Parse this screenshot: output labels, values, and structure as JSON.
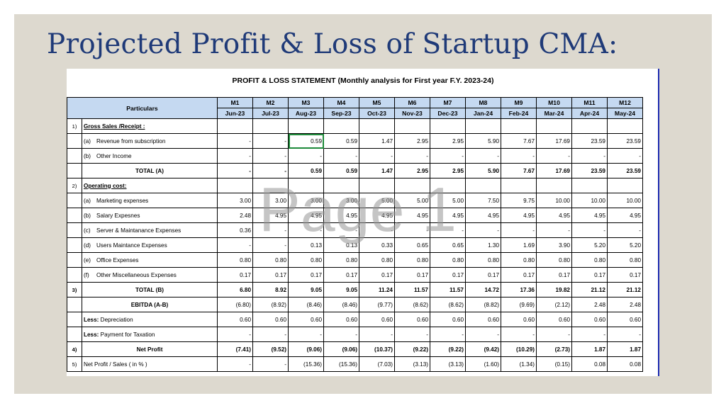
{
  "slide": {
    "title": "Projected Profit & Loss of Startup CMA:"
  },
  "sheet": {
    "title": "PROFIT & LOSS STATEMENT (Monthly analysis for First year F.Y. 2023-24)",
    "particulars_header": "Particulars",
    "months": [
      "M1",
      "M2",
      "M3",
      "M4",
      "M5",
      "M6",
      "M7",
      "M8",
      "M9",
      "M10",
      "M11",
      "M12"
    ],
    "dates": [
      "Jun-23",
      "Jul-23",
      "Aug-23",
      "Sep-23",
      "Oct-23",
      "Nov-23",
      "Dec-23",
      "Jan-24",
      "Feb-24",
      "Mar-24",
      "Apr-24",
      "May-24"
    ]
  },
  "watermark": "Page 1",
  "rows": [
    {
      "type": "section",
      "no": "1)",
      "label": "Gross Sales /Receipt :"
    },
    {
      "type": "item",
      "letter": "(a)",
      "label": "Revenue from subscription",
      "values": [
        "-",
        "-",
        "0.59",
        "0.59",
        "1.47",
        "2.95",
        "2.95",
        "5.90",
        "7.67",
        "17.69",
        "23.59",
        "23.59"
      ]
    },
    {
      "type": "item",
      "letter": "(b)",
      "label": "Other Income",
      "values": [
        "-",
        "-",
        "-",
        "-",
        "-",
        "-",
        "-",
        "-",
        "-",
        "-",
        "-",
        "-"
      ]
    },
    {
      "type": "total",
      "label": "TOTAL (A)",
      "values": [
        "-",
        "-",
        "0.59",
        "0.59",
        "1.47",
        "2.95",
        "2.95",
        "5.90",
        "7.67",
        "17.69",
        "23.59",
        "23.59"
      ]
    },
    {
      "type": "section",
      "no": "2)",
      "label": "Operating cost:"
    },
    {
      "type": "item",
      "letter": "(a)",
      "label": "Marketing expenses",
      "values": [
        "3.00",
        "3.00",
        "3.00",
        "3.00",
        "5.00",
        "5.00",
        "5.00",
        "7.50",
        "9.75",
        "10.00",
        "10.00",
        "10.00"
      ]
    },
    {
      "type": "item",
      "letter": "(b)",
      "label": "Salary Expesnes",
      "values": [
        "2.48",
        "4.95",
        "4.95",
        "4.95",
        "4.95",
        "4.95",
        "4.95",
        "4.95",
        "4.95",
        "4.95",
        "4.95",
        "4.95"
      ]
    },
    {
      "type": "item",
      "letter": "(c)",
      "label": "Server & Maintanance Expenses",
      "values": [
        "0.36",
        "-",
        "-",
        "-",
        "-",
        "-",
        "-",
        "-",
        "-",
        "-",
        "-",
        "-"
      ]
    },
    {
      "type": "item",
      "letter": "(d)",
      "label": "Users Maintance Expenses",
      "values": [
        "-",
        "-",
        "0.13",
        "0.13",
        "0.33",
        "0.65",
        "0.65",
        "1.30",
        "1.69",
        "3.90",
        "5.20",
        "5.20"
      ]
    },
    {
      "type": "item",
      "letter": "(e)",
      "label": "Office Expenses",
      "values": [
        "0.80",
        "0.80",
        "0.80",
        "0.80",
        "0.80",
        "0.80",
        "0.80",
        "0.80",
        "0.80",
        "0.80",
        "0.80",
        "0.80"
      ]
    },
    {
      "type": "item",
      "letter": "(f)",
      "label": "Other Miscellaneous Expenses",
      "values": [
        "0.17",
        "0.17",
        "0.17",
        "0.17",
        "0.17",
        "0.17",
        "0.17",
        "0.17",
        "0.17",
        "0.17",
        "0.17",
        "0.17"
      ]
    },
    {
      "type": "total",
      "no": "3)",
      "label": "TOTAL (B)",
      "values": [
        "6.80",
        "8.92",
        "9.05",
        "9.05",
        "11.24",
        "11.57",
        "11.57",
        "14.72",
        "17.36",
        "19.82",
        "21.12",
        "21.12"
      ]
    },
    {
      "type": "ebitda",
      "label": "EBITDA (A-B)",
      "values": [
        "(6.80)",
        "(8.92)",
        "(8.46)",
        "(8.46)",
        "(9.77)",
        "(8.62)",
        "(8.62)",
        "(8.82)",
        "(9.69)",
        "(2.12)",
        "2.48",
        "2.48"
      ]
    },
    {
      "type": "less",
      "bold": "Less:",
      "label": "Depreciation",
      "values": [
        "0.60",
        "0.60",
        "0.60",
        "0.60",
        "0.60",
        "0.60",
        "0.60",
        "0.60",
        "0.60",
        "0.60",
        "0.60",
        "0.60"
      ]
    },
    {
      "type": "less",
      "bold": "Less:",
      "label": "Payment for Taxation",
      "values": [
        "-",
        "-",
        "-",
        "-",
        "-",
        "-",
        "-",
        "-",
        "-",
        "-",
        "-",
        "-"
      ]
    },
    {
      "type": "total",
      "no": "4)",
      "label": "Net Profit",
      "values": [
        "(7.41)",
        "(9.52)",
        "(9.06)",
        "(9.06)",
        "(10.37)",
        "(9.22)",
        "(9.22)",
        "(9.42)",
        "(10.29)",
        "(2.73)",
        "1.87",
        "1.87"
      ]
    },
    {
      "type": "plain",
      "no": "5)",
      "label": "Net Profit / Sales ( in % )",
      "values": [
        "-",
        "-",
        "(15.36)",
        "(15.36)",
        "(7.03)",
        "(3.13)",
        "(3.13)",
        "(1.60)",
        "(1.34)",
        "(0.15)",
        "0.08",
        "0.08"
      ]
    }
  ]
}
